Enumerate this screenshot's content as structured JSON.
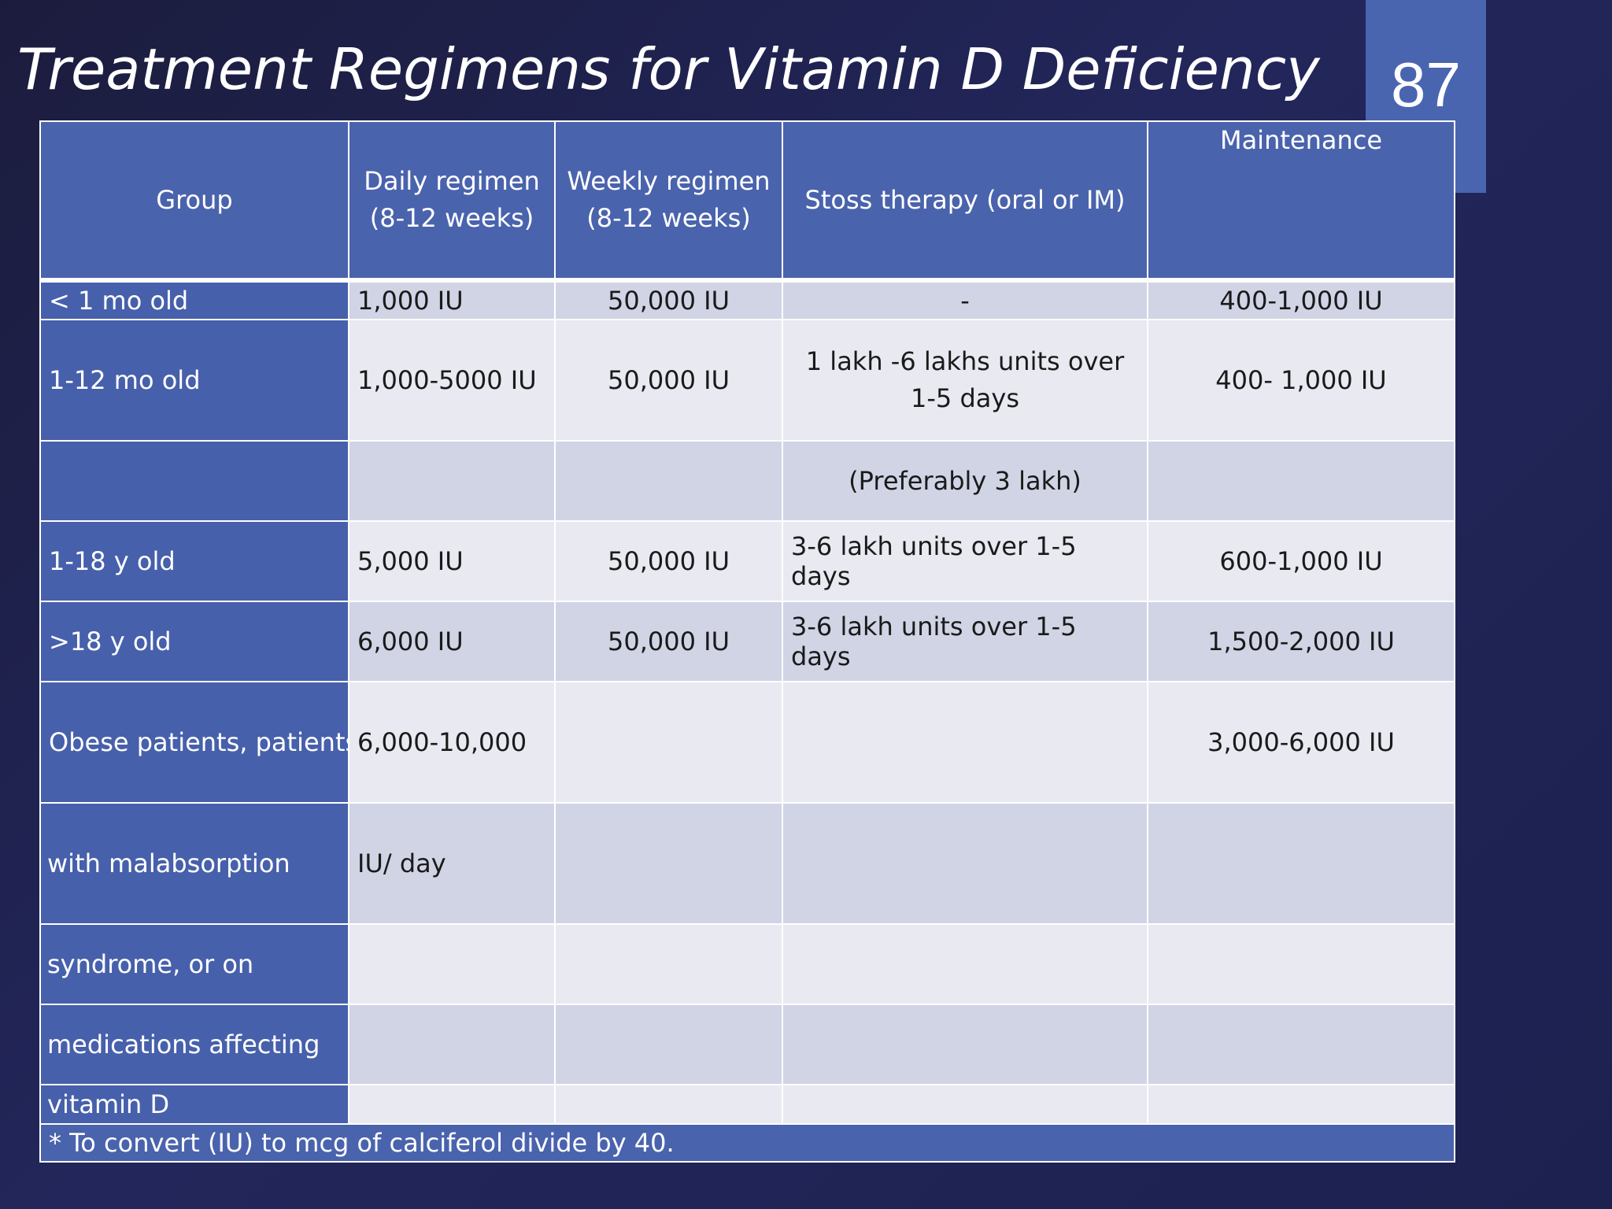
{
  "slide": {
    "title": "Treatment Regimens for Vitamin D Deficiency",
    "page_number": "87"
  },
  "table": {
    "headers": {
      "group": "Group",
      "daily_line1": "Daily regimen",
      "daily_line2": "(8-12 weeks)",
      "weekly_line1": "Weekly regimen",
      "weekly_line2": "(8-12 weeks)",
      "stoss": "Stoss therapy (oral or IM)",
      "maintenance": "Maintenance"
    },
    "rows": [
      {
        "group": "< 1 mo old",
        "daily": "1,000 IU",
        "weekly": "50,000 IU",
        "stoss": "-",
        "maintenance": "400-1,000 IU"
      },
      {
        "group": "1-12 mo old",
        "daily": "1,000-5000 IU",
        "weekly": "50,000 IU",
        "stoss": "1 lakh -6 lakhs units over 1-5 days",
        "maintenance": "400- 1,000 IU"
      },
      {
        "group": "",
        "daily": "",
        "weekly": "",
        "stoss": "(Preferably 3 lakh)",
        "maintenance": ""
      },
      {
        "group": "1-18 y old",
        "daily": "5,000 IU",
        "weekly": "50,000 IU",
        "stoss": "3-6 lakh units over 1-5 days",
        "maintenance": "600-1,000 IU"
      },
      {
        "group": ">18 y old",
        "daily": "6,000 IU",
        "weekly": "50,000 IU",
        "stoss": "3-6 lakh units over 1-5 days",
        "maintenance": "1,500-2,000 IU"
      },
      {
        "group": "Obese patients, patients",
        "daily": "6,000-10,000",
        "weekly": "",
        "stoss": "",
        "maintenance": "3,000-6,000 IU"
      },
      {
        "group": "with malabsorption",
        "daily": "IU/ day",
        "weekly": "",
        "stoss": "",
        "maintenance": ""
      },
      {
        "group": "syndrome, or on",
        "daily": "",
        "weekly": "",
        "stoss": "",
        "maintenance": ""
      },
      {
        "group": "medications affecting",
        "daily": "",
        "weekly": "",
        "stoss": "",
        "maintenance": ""
      },
      {
        "group": "vitamin D",
        "daily": "",
        "weekly": "",
        "stoss": "",
        "maintenance": ""
      }
    ],
    "footer": "* To convert (IU) to mcg of calciferol divide by 40."
  }
}
